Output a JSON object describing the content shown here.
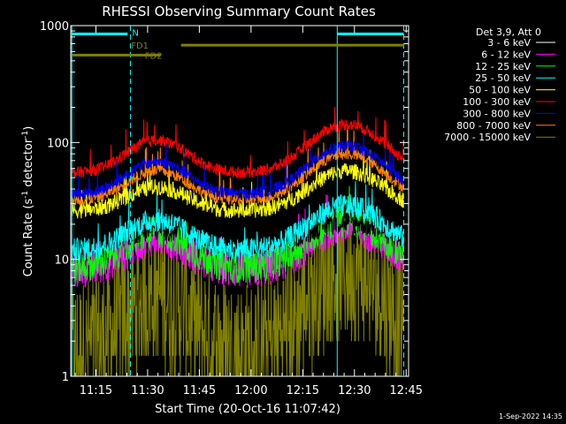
{
  "chart_data": {
    "type": "line",
    "title": "RHESSI Observing Summary Count Rates",
    "xlabel": "Start Time (20-Oct-16 11:07:42)",
    "ylabel_main": "Count Rate (s",
    "ylabel_sup1": "-1",
    "ylabel_mid": " detector",
    "ylabel_sup2": "-1",
    "ylabel_end": ")",
    "y_scale": "log",
    "ylim": [
      1,
      1000
    ],
    "xlim_minutes": [
      0,
      98
    ],
    "x_ticks": [
      {
        "label": "11:15",
        "minutes": 7.3
      },
      {
        "label": "11:30",
        "minutes": 22.3
      },
      {
        "label": "11:45",
        "minutes": 37.3
      },
      {
        "label": "12:00",
        "minutes": 52.3
      },
      {
        "label": "12:15",
        "minutes": 67.3
      },
      {
        "label": "12:30",
        "minutes": 82.3
      },
      {
        "label": "12:45",
        "minutes": 97.3
      }
    ],
    "y_ticks": [
      {
        "label": "1",
        "value": 1
      },
      {
        "label": "10",
        "value": 10
      },
      {
        "label": "100",
        "value": 100
      },
      {
        "label": "1000",
        "value": 1000
      }
    ],
    "legend_header": "Det 3,9, Att 0",
    "legend_placement": "right",
    "series": [
      {
        "name": "3 - 6 keV",
        "color": "#000000",
        "base": 14,
        "ampA": 1.3,
        "ampB": 1.5,
        "noise": 0.1
      },
      {
        "name": "6 - 12 keV",
        "color": "#ff00ff",
        "base": 8,
        "ampA": 1.9,
        "ampB": 2.4,
        "noise": 0.16
      },
      {
        "name": "12 - 25 keV",
        "color": "#00ff00",
        "base": 8.5,
        "ampA": 2.0,
        "ampB": 2.5,
        "noise": 0.14
      },
      {
        "name": "25 - 50 keV",
        "color": "#00ffff",
        "base": 12,
        "ampA": 1.8,
        "ampB": 2.4,
        "noise": 0.1
      },
      {
        "name": "50 - 100 keV",
        "color": "#ffff00",
        "base": 26,
        "ampA": 1.6,
        "ampB": 2.2,
        "noise": 0.07
      },
      {
        "name": "100 - 300 keV",
        "color": "#ff0000",
        "base": 55,
        "ampA": 1.9,
        "ampB": 2.6,
        "noise": 0.05
      },
      {
        "name": "300 - 800 keV",
        "color": "#0000ff",
        "base": 36,
        "ampA": 1.9,
        "ampB": 2.6,
        "noise": 0.05
      },
      {
        "name": "800 - 7000 keV",
        "color": "#ff8000",
        "base": 32,
        "ampA": 1.8,
        "ampB": 2.5,
        "noise": 0.05
      },
      {
        "name": "7000 - 15000 keV",
        "color": "#808000",
        "base": 1.6,
        "ampA": 3.2,
        "ampB": 5.0,
        "noise": 0.25
      }
    ],
    "vertical_markers_minutes": [
      0.3,
      17.3,
      77.3,
      96.6
    ],
    "marker_styles": [
      "solid",
      "dashed",
      "solid",
      "dashed"
    ],
    "flags": [
      {
        "name": "N",
        "color": "#00ffff",
        "segments": [
          [
            0.3,
            16.5
          ],
          [
            77.3,
            96.6
          ]
        ],
        "value": 850
      },
      {
        "name": "FD1",
        "color": "#808000",
        "segments": [
          [
            32,
            96.6
          ]
        ],
        "value": 680
      },
      {
        "name": "FD2",
        "color": "#808000",
        "segments": [
          [
            0.3,
            26
          ]
        ],
        "value": 560
      }
    ],
    "footer_date": "1-Sep-2022 14:35"
  }
}
